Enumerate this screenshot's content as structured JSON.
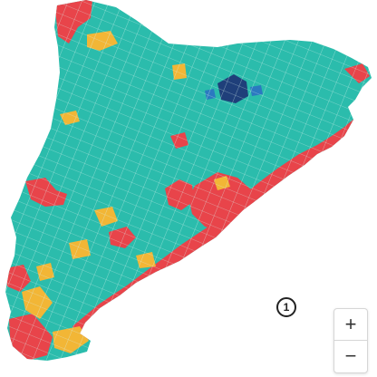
{
  "map": {
    "region_colors": {
      "teal": "#2bbcac",
      "red": "#e8444a",
      "yellow": "#f2b636",
      "dark_blue": "#1f3f7a",
      "light_blue": "#2b79c0",
      "border": "#d8f2ee"
    }
  },
  "marker": {
    "label": "1"
  },
  "zoom": {
    "in_label": "+",
    "out_label": "−"
  }
}
